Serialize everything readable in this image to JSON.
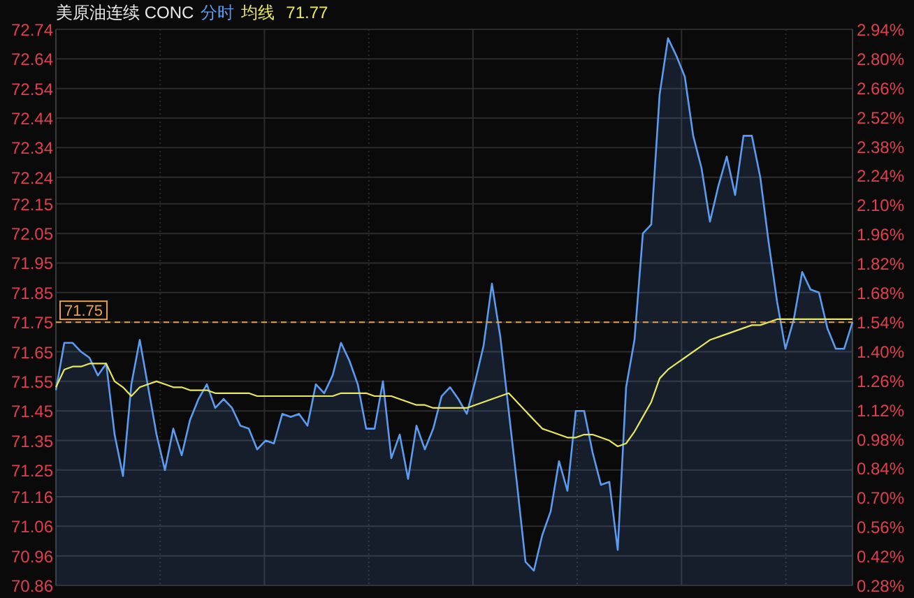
{
  "chart_data": {
    "type": "area",
    "title": "美原油连续 CONC",
    "categories": [
      null,
      null,
      null,
      null,
      null,
      null,
      null,
      null,
      null,
      null,
      null,
      null,
      null,
      null,
      null,
      null,
      null,
      null,
      null,
      null,
      null,
      null,
      null,
      null,
      null,
      null,
      null,
      null,
      null,
      null,
      null,
      null,
      null,
      null,
      null,
      null,
      null,
      null,
      null,
      null,
      null,
      null,
      null,
      null,
      null,
      null,
      null,
      null,
      null,
      null,
      null,
      null,
      null,
      null,
      null,
      null,
      null,
      null,
      null,
      null,
      null,
      null,
      null,
      null,
      null,
      null,
      null,
      null,
      null,
      null,
      null,
      null,
      null,
      null,
      null,
      null,
      null,
      null,
      null,
      null,
      null,
      null,
      null,
      null,
      null,
      null,
      null,
      null,
      null,
      null,
      null,
      null,
      null,
      null,
      null,
      null
    ],
    "series": [
      {
        "name": "分时",
        "color": "#5b9cf0",
        "values": [
          71.52,
          71.68,
          71.68,
          71.65,
          71.63,
          71.57,
          71.61,
          71.37,
          71.23,
          71.54,
          71.69,
          71.53,
          71.37,
          71.25,
          71.39,
          71.3,
          71.42,
          71.49,
          71.54,
          71.46,
          71.49,
          71.46,
          71.4,
          71.39,
          71.32,
          71.35,
          71.34,
          71.44,
          71.43,
          71.44,
          71.4,
          71.54,
          71.51,
          71.57,
          71.68,
          71.62,
          71.54,
          71.39,
          71.39,
          71.55,
          71.29,
          71.37,
          71.22,
          71.4,
          71.32,
          71.39,
          71.5,
          71.53,
          71.49,
          71.44,
          71.55,
          71.67,
          71.88,
          71.7,
          71.45,
          71.2,
          70.94,
          70.91,
          71.03,
          71.11,
          71.28,
          71.18,
          71.45,
          71.45,
          71.31,
          71.2,
          71.21,
          70.98,
          71.53,
          71.69,
          72.05,
          72.08,
          72.52,
          72.71,
          72.65,
          72.58,
          72.38,
          72.27,
          72.09,
          72.21,
          72.31,
          72.18,
          72.38,
          72.38,
          72.24,
          72.02,
          71.82,
          71.66,
          71.76,
          71.92,
          71.86,
          71.85,
          71.73,
          71.66,
          71.66,
          71.75
        ]
      },
      {
        "name": "均线",
        "type": "line",
        "color": "#e8e85a",
        "values": [
          71.53,
          71.59,
          71.6,
          71.6,
          71.61,
          71.61,
          71.61,
          71.55,
          71.53,
          71.5,
          71.53,
          71.54,
          71.55,
          71.54,
          71.53,
          71.53,
          71.52,
          71.52,
          71.52,
          71.51,
          71.51,
          71.51,
          71.51,
          71.51,
          71.5,
          71.5,
          71.5,
          71.5,
          71.5,
          71.5,
          71.5,
          71.5,
          71.5,
          71.5,
          71.51,
          71.51,
          71.51,
          71.51,
          71.5,
          71.5,
          71.5,
          71.49,
          71.48,
          71.47,
          71.47,
          71.46,
          71.46,
          71.46,
          71.46,
          71.46,
          71.47,
          71.48,
          71.49,
          71.5,
          71.51,
          71.48,
          71.45,
          71.42,
          71.39,
          71.38,
          71.37,
          71.36,
          71.36,
          71.37,
          71.37,
          71.36,
          71.35,
          71.33,
          71.34,
          71.38,
          71.43,
          71.48,
          71.56,
          71.59,
          71.61,
          71.63,
          71.65,
          71.67,
          71.69,
          71.7,
          71.71,
          71.72,
          71.73,
          71.74,
          71.74,
          71.75,
          71.76,
          71.76,
          71.76,
          71.76,
          71.76,
          71.76,
          71.76,
          71.76,
          71.76,
          71.76
        ]
      }
    ],
    "ylim": [
      70.86,
      72.74
    ],
    "yticks": [
      72.74,
      72.64,
      72.54,
      72.44,
      72.34,
      72.24,
      72.15,
      72.05,
      71.95,
      71.85,
      71.75,
      71.65,
      71.55,
      71.45,
      71.35,
      71.25,
      71.16,
      71.06,
      70.96,
      70.86
    ],
    "y2lim": [
      0.28,
      2.94
    ],
    "y2ticks": [
      {
        "value": 2.94,
        "label": "2.94%"
      },
      {
        "value": 2.8,
        "label": "2.80%"
      },
      {
        "value": 2.66,
        "label": "2.66%"
      },
      {
        "value": 2.52,
        "label": "2.52%"
      },
      {
        "value": 2.38,
        "label": "2.38%"
      },
      {
        "value": 2.24,
        "label": "2.24%"
      },
      {
        "value": 2.1,
        "label": "2.10%"
      },
      {
        "value": 1.96,
        "label": "1.96%"
      },
      {
        "value": 1.82,
        "label": "1.82%"
      },
      {
        "value": 1.68,
        "label": "1.68%"
      },
      {
        "value": 1.54,
        "label": "1.54%"
      },
      {
        "value": 1.4,
        "label": "1.40%"
      },
      {
        "value": 1.26,
        "label": "1.26%"
      },
      {
        "value": 1.12,
        "label": "1.12%"
      },
      {
        "value": 0.98,
        "label": "0.98%"
      },
      {
        "value": 0.84,
        "label": "0.84%"
      },
      {
        "value": 0.7,
        "label": "0.70%"
      },
      {
        "value": 0.56,
        "label": "0.56%"
      },
      {
        "value": 0.42,
        "label": "0.42%"
      },
      {
        "value": 0.28,
        "label": "0.28%"
      }
    ],
    "ref_lines": [
      {
        "axis": "y",
        "value": 71.75,
        "label": "71.75",
        "color": "#e8a050",
        "line_style": "dashed"
      }
    ],
    "annotations": [
      "71.77"
    ],
    "grid": true,
    "legend": "top left",
    "tick_labels": "y",
    "marker": "none",
    "line_style": "solid"
  }
}
